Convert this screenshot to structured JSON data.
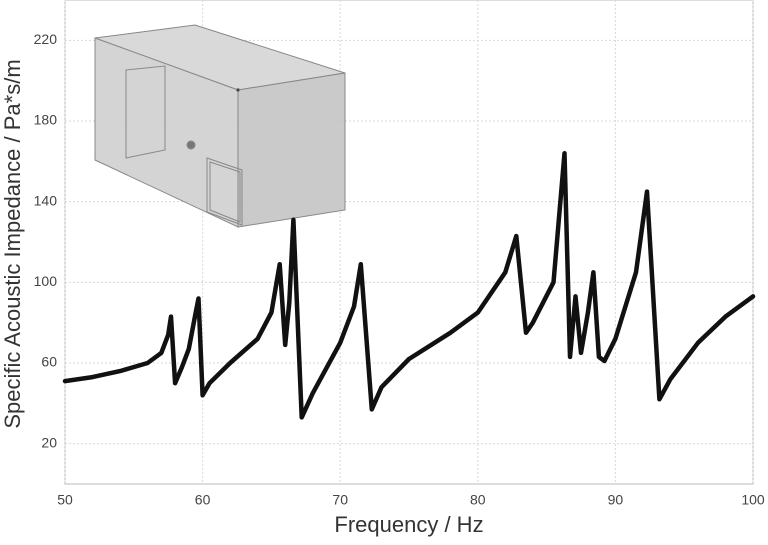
{
  "chart_data": {
    "type": "line",
    "xlabel": "Frequency / Hz",
    "ylabel": "Specific Acoustic Impedance / Pa*s/m",
    "x": [
      50,
      52,
      54,
      56,
      57,
      57.5,
      57.7,
      58.0,
      58.5,
      59,
      59.5,
      59.7,
      60.0,
      60.5,
      62,
      64,
      65,
      65.6,
      66.0,
      66.3,
      66.6,
      67.2,
      68,
      70,
      71,
      71.5,
      72.3,
      73,
      75,
      78,
      80,
      82,
      82.8,
      83.5,
      84,
      85.5,
      86.3,
      86.7,
      87.1,
      87.5,
      88.0,
      88.4,
      88.8,
      89.2,
      90,
      91.5,
      92.3,
      93.2,
      94,
      96,
      98,
      100
    ],
    "values": [
      51,
      53,
      56,
      60,
      65,
      74,
      83,
      50,
      58,
      67,
      85,
      92,
      44,
      50,
      60,
      72,
      85,
      109,
      69,
      90,
      131,
      33,
      45,
      70,
      88,
      109,
      37,
      48,
      62,
      75,
      85,
      105,
      123,
      75,
      80,
      100,
      164,
      63,
      93,
      65,
      85,
      105,
      63,
      61,
      72,
      105,
      145,
      42,
      52,
      70,
      83,
      93
    ],
    "color": "#111111",
    "xlim": [
      50,
      100
    ],
    "xticks": [
      50,
      60,
      70,
      80,
      90,
      100
    ],
    "ylim": [
      0,
      240
    ],
    "yticks": [
      20,
      60,
      100,
      140,
      180,
      220
    ],
    "grid": true
  }
}
